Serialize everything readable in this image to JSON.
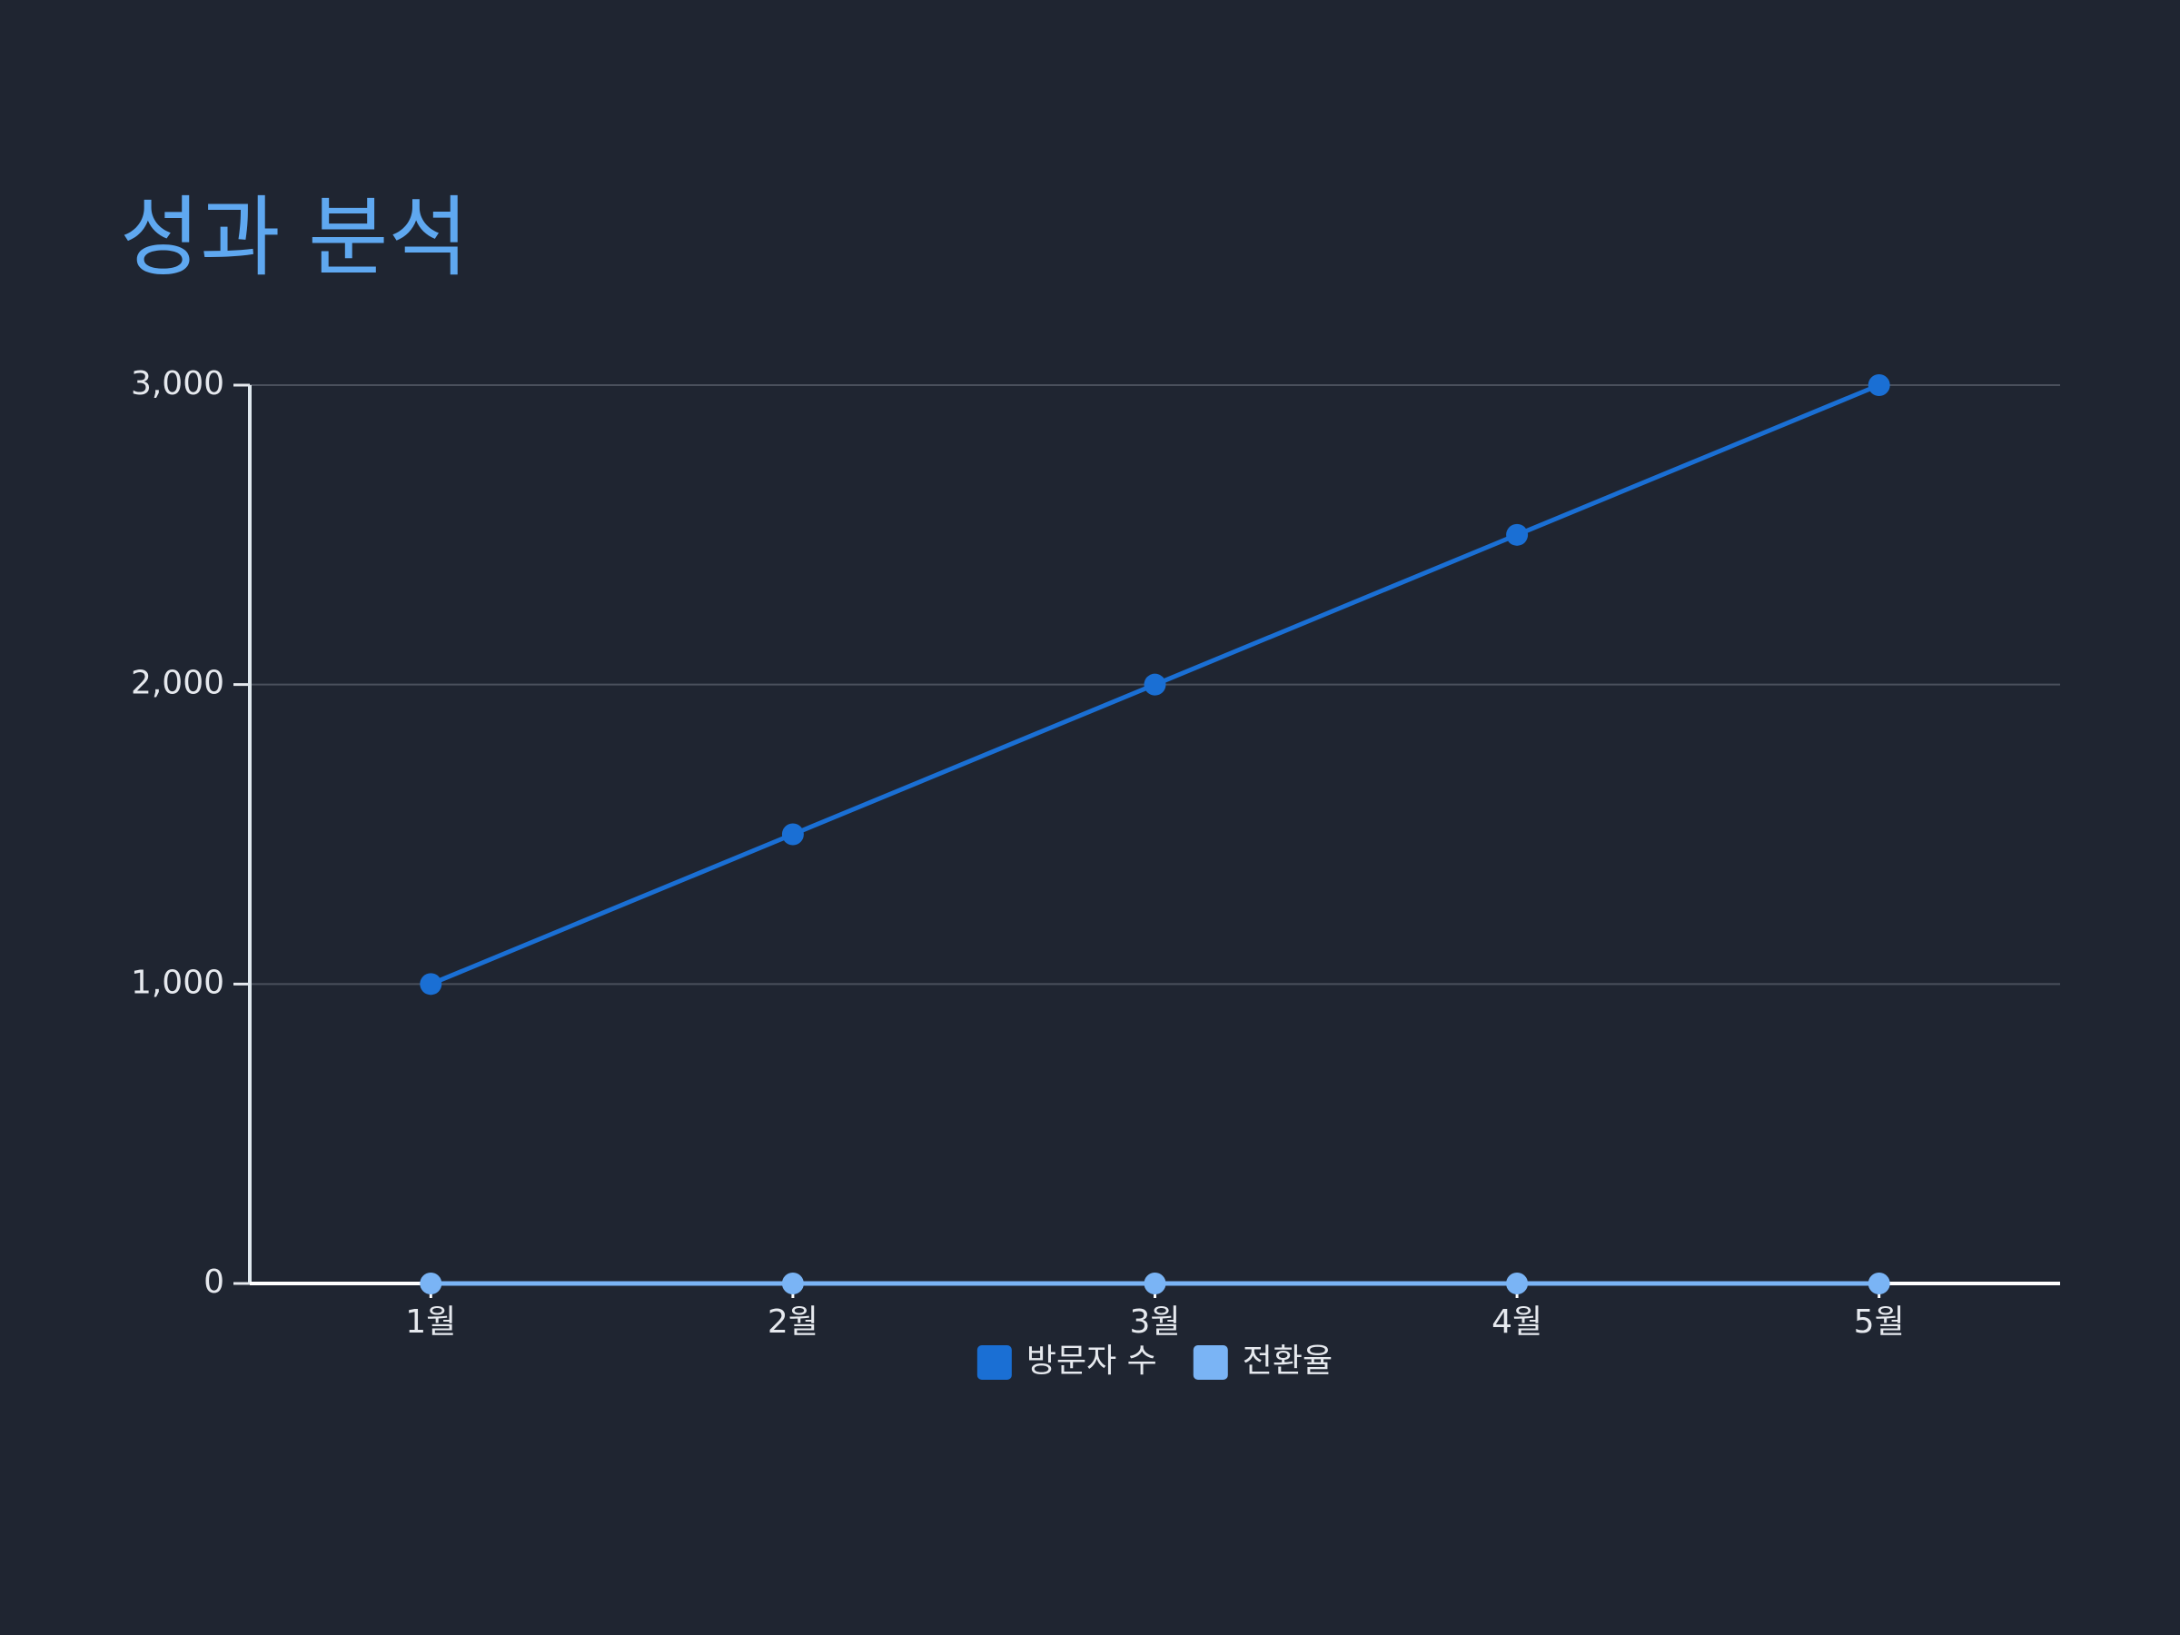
{
  "chart_data": {
    "type": "line",
    "title": "성과 분석",
    "categories": [
      "1월",
      "2월",
      "3월",
      "4월",
      "5월"
    ],
    "series": [
      {
        "name": "방문자 수",
        "color": "#1a6fd4",
        "values": [
          1000,
          1500,
          2000,
          2500,
          3000
        ]
      },
      {
        "name": "전환율",
        "color": "#7ab4f5",
        "values": [
          0,
          0,
          0,
          0,
          0
        ]
      }
    ],
    "ylim": [
      0,
      3000
    ],
    "yticks": [
      0,
      {
        "value": 1000,
        "label": "1,000"
      },
      {
        "value": 2000,
        "label": "2,000"
      },
      {
        "value": 3000,
        "label": "3,000"
      }
    ],
    "grid": true,
    "legend": "bottom"
  }
}
